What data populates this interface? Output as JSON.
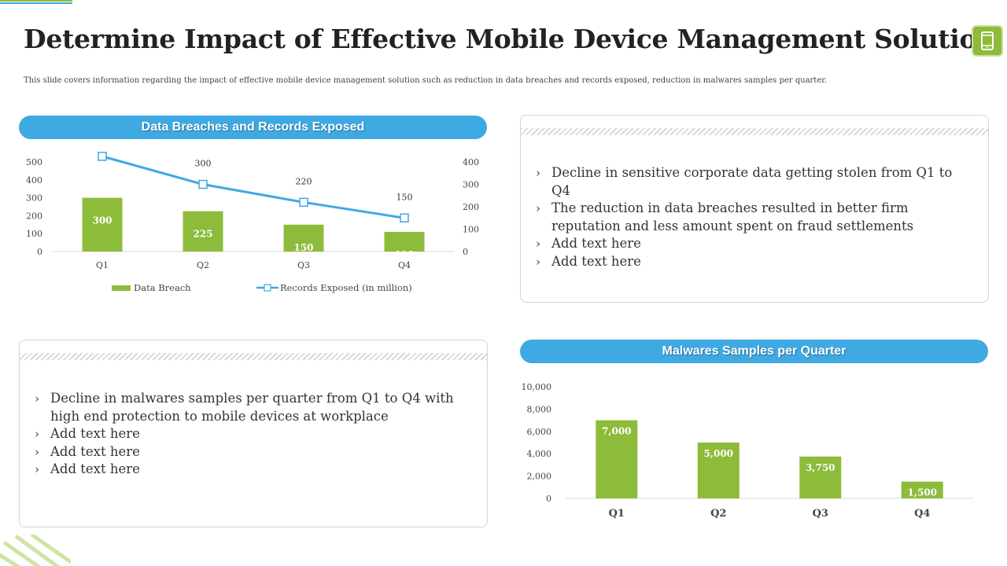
{
  "header": {
    "title": "Determine Impact of Effective Mobile Device Management Solution",
    "subtitle": "This slide covers information regarding the impact of effective mobile device management solution such as reduction in data breaches and records exposed, reduction in malwares samples per quarter."
  },
  "colors": {
    "green": "#8dbb3a",
    "blue": "#3fa9e3",
    "white": "#ffffff"
  },
  "icons": {
    "header_icon": "mobile-phone-icon"
  },
  "panels": {
    "chart1_title": "Data Breaches and Records Exposed",
    "chart2_title": "Malwares Samples per Quarter",
    "box1_bullets": [
      "Decline in sensitive corporate data getting stolen from Q1 to Q4",
      "The reduction in data breaches resulted in better firm reputation and less amount spent on fraud settlements",
      "Add text here",
      "Add text here"
    ],
    "box2_bullets": [
      "Decline in malwares samples per quarter from Q1 to Q4 with high end protection to mobile devices at workplace",
      "Add text here",
      "Add text here",
      "Add text here"
    ]
  },
  "chart_data": [
    {
      "type": "bar+line",
      "title": "Data Breaches and Records Exposed",
      "categories": [
        "Q1",
        "Q2",
        "Q3",
        "Q4"
      ],
      "series": [
        {
          "name": "Data Breach",
          "kind": "bar",
          "axis": "left",
          "values": [
            300,
            225,
            150,
            110
          ]
        },
        {
          "name": "Records Exposed (in million)",
          "kind": "line",
          "axis": "right",
          "values": [
            425,
            300,
            220,
            150
          ]
        }
      ],
      "ylim_left": [
        0,
        500
      ],
      "yticks_left": [
        0,
        100,
        200,
        300,
        400,
        500
      ],
      "ylim_right": [
        0,
        400
      ],
      "yticks_right": [
        0,
        100,
        200,
        300,
        400
      ],
      "legend": "bottom"
    },
    {
      "type": "bar",
      "title": "Malwares Samples per Quarter",
      "categories": [
        "Q1",
        "Q2",
        "Q3",
        "Q4"
      ],
      "values": [
        7000,
        5000,
        3750,
        1500
      ],
      "value_labels": [
        "7,000",
        "5,000",
        "3,750",
        "1,500"
      ],
      "ylim": [
        0,
        10000
      ],
      "yticks": [
        "0",
        "2,000",
        "4,000",
        "6,000",
        "8,000",
        "10,000"
      ],
      "ytick_values": [
        0,
        2000,
        4000,
        6000,
        8000,
        10000
      ]
    }
  ]
}
